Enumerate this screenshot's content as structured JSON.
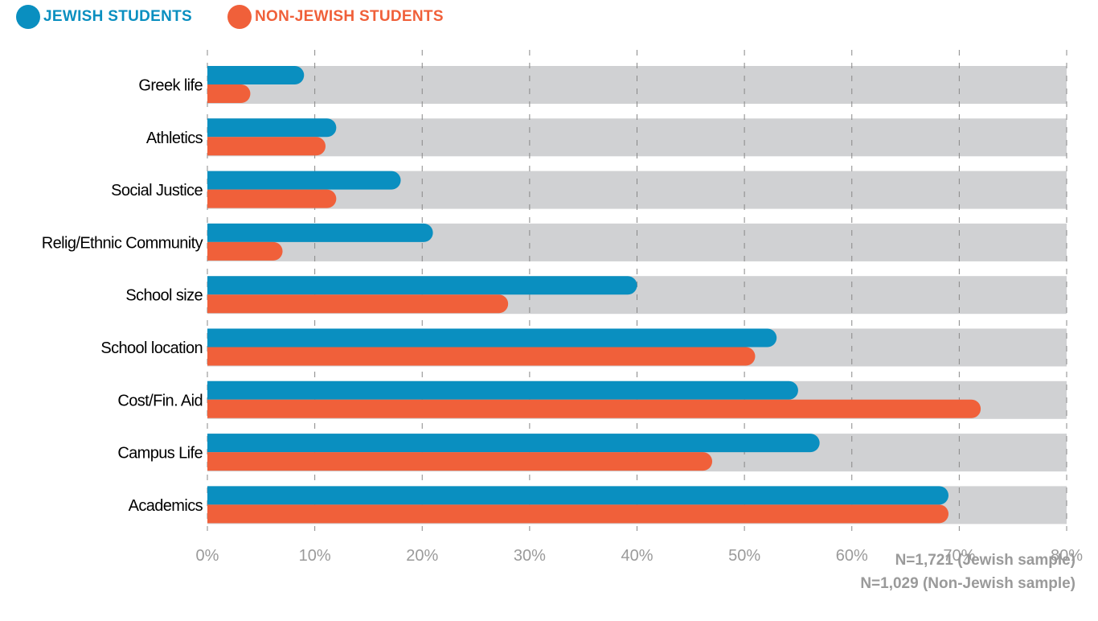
{
  "legend": {
    "jewish": {
      "label": "JEWISH STUDENTS",
      "color": "#0a8fc0"
    },
    "non_jewish": {
      "label": "NON-JEWISH STUDENTS",
      "color": "#f0603a"
    }
  },
  "notes": {
    "jewish_sample": "N=1,721 (Jewish sample)",
    "non_jewish_sample": "N=1,029 (Non-Jewish sample)"
  },
  "colors": {
    "track": "#d0d1d3",
    "grid": "#888888",
    "tick": "#9a9a9a",
    "label": "#000000"
  },
  "chart_data": {
    "type": "bar",
    "orientation": "horizontal",
    "categories": [
      "Greek life",
      "Athletics",
      "Social Justice",
      "Relig/Ethnic Community",
      "School size",
      "School location",
      "Cost/Fin. Aid",
      "Campus Life",
      "Academics"
    ],
    "series": [
      {
        "name": "JEWISH STUDENTS",
        "color": "#0a8fc0",
        "values": [
          9,
          12,
          18,
          21,
          40,
          53,
          55,
          57,
          69
        ]
      },
      {
        "name": "NON-JEWISH STUDENTS",
        "color": "#f0603a",
        "values": [
          4,
          11,
          12,
          7,
          28,
          51,
          72,
          47,
          69
        ]
      }
    ],
    "xlim": [
      0,
      80
    ],
    "xticks": [
      "0%",
      "10%",
      "20%",
      "30%",
      "40%",
      "50%",
      "60%",
      "70%",
      "80%"
    ],
    "grid": true,
    "legend_position": "top-left"
  }
}
